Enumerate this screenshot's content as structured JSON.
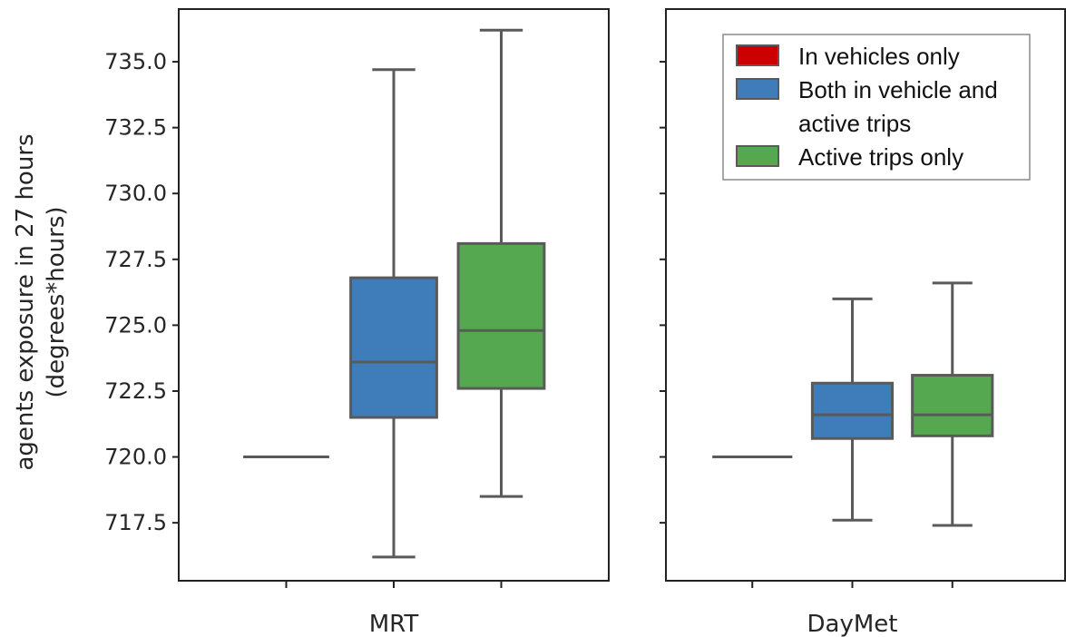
{
  "chart_data": {
    "type": "box",
    "ylabel": "agents exposure in 27 hours",
    "ylabel_unit": "(degrees*hours)",
    "yticks": [
      "717.5",
      "720.0",
      "722.5",
      "725.0",
      "727.5",
      "730.0",
      "732.5",
      "735.0"
    ],
    "ylim": [
      715.3,
      737.0
    ],
    "legend_position": "top-right",
    "grid": false,
    "series": [
      {
        "name": "In vehicles only",
        "name_lines": [
          "In vehicles only"
        ],
        "color": "#cc0000"
      },
      {
        "name": "Both in vehicle and active trips",
        "name_lines": [
          "Both in vehicle and",
          "active trips"
        ],
        "color": "#3e7dba"
      },
      {
        "name": "Active trips only",
        "name_lines": [
          "Active trips only"
        ],
        "color": "#55a84f"
      }
    ],
    "panels": [
      {
        "category": "MRT",
        "boxes": [
          {
            "series": "In vehicles only",
            "min": 720.0,
            "q1": 720.0,
            "median": 720.0,
            "q3": 720.0,
            "max": 720.0
          },
          {
            "series": "Both in vehicle and active trips",
            "min": 716.2,
            "q1": 721.5,
            "median": 723.6,
            "q3": 726.8,
            "max": 734.7
          },
          {
            "series": "Active trips only",
            "min": 718.5,
            "q1": 722.6,
            "median": 724.8,
            "q3": 728.1,
            "max": 736.2
          }
        ]
      },
      {
        "category": "DayMet",
        "boxes": [
          {
            "series": "In vehicles only",
            "min": 720.0,
            "q1": 720.0,
            "median": 720.0,
            "q3": 720.0,
            "max": 720.0
          },
          {
            "series": "Both in vehicle and active trips",
            "min": 717.6,
            "q1": 720.7,
            "median": 721.6,
            "q3": 722.8,
            "max": 726.0
          },
          {
            "series": "Active trips only",
            "min": 717.4,
            "q1": 720.8,
            "median": 721.6,
            "q3": 723.1,
            "max": 726.6
          }
        ]
      }
    ]
  }
}
